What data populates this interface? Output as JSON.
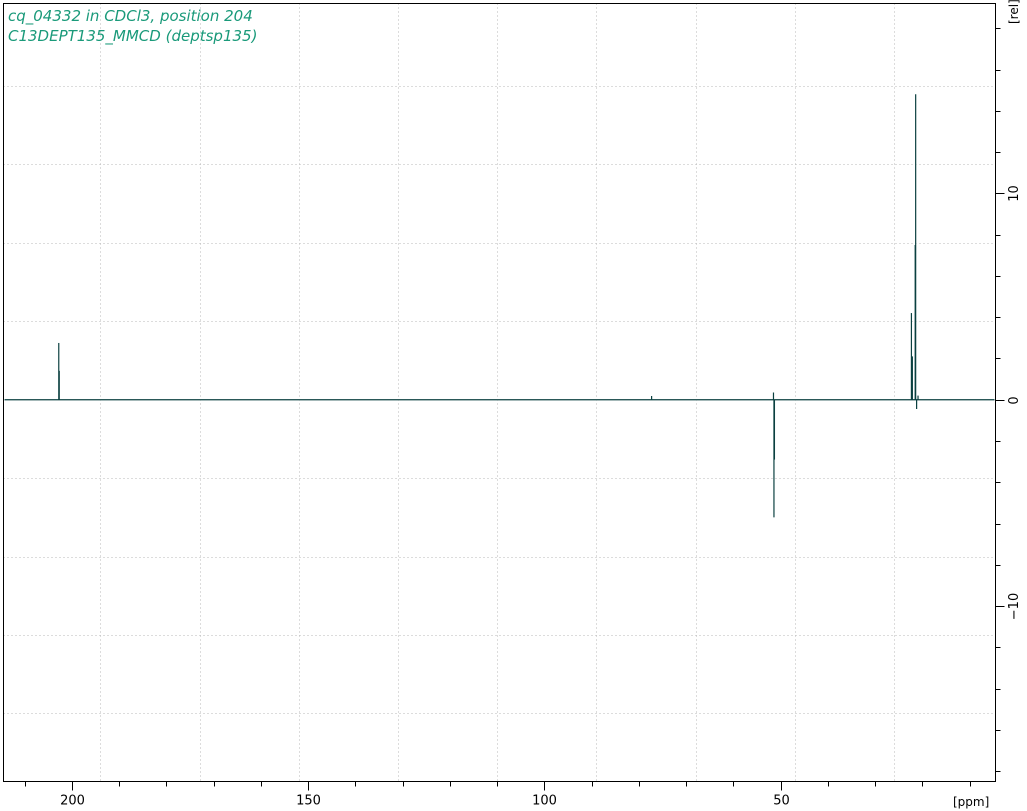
{
  "window": {
    "title_lines": [
      "cq_04332 in CDCl3, position 204",
      "C13DEPT135_MMCD (deptsp135)"
    ]
  },
  "colors": {
    "title": "#1a9a7a",
    "trace": "#0b4040",
    "grid": "#b8b8b8",
    "frame": "#000000"
  },
  "chart_data": {
    "type": "line",
    "title": "cq_04332 in CDCl3, position 204",
    "subtitle": "C13DEPT135_MMCD (deptsp135)",
    "xlabel": "[ppm]",
    "ylabel": "[rel]",
    "x_reversed": true,
    "xlim": [
      214.5,
      4.5
    ],
    "ylim": [
      -18.5,
      19.2
    ],
    "x_major_ticks": [
      200,
      150,
      100,
      50
    ],
    "x_major_labels": [
      "200",
      "150",
      "100",
      "50"
    ],
    "x_minor_ticks": [
      210,
      190,
      180,
      170,
      160,
      140,
      130,
      120,
      110,
      90,
      80,
      70,
      60,
      40,
      30,
      20,
      10
    ],
    "x_grid": [
      194,
      173,
      152,
      131,
      110,
      89,
      68,
      47,
      26
    ],
    "y_major_ticks": [
      10,
      0,
      -10
    ],
    "y_major_labels": [
      "10",
      "0",
      "−10"
    ],
    "y_minor_ticks": [
      18,
      16,
      14,
      12,
      8,
      6,
      4,
      2,
      -2,
      -4,
      -6,
      -8,
      -12,
      -14,
      -16,
      -18
    ],
    "y_grid": [
      15.2,
      11.4,
      7.6,
      3.8,
      -3.8,
      -7.6,
      -11.4,
      -15.2
    ],
    "grid": true,
    "series": [
      {
        "name": "",
        "peaks": [
          {
            "x": 202.8,
            "y": 2.75
          },
          {
            "x": 202.7,
            "y": 1.4
          },
          {
            "x": 51.4,
            "y": -5.7
          },
          {
            "x": 51.3,
            "y": -2.9
          },
          {
            "x": 51.5,
            "y": 0.35
          },
          {
            "x": 22.3,
            "y": 4.2
          },
          {
            "x": 22.1,
            "y": 2.1
          },
          {
            "x": 21.4,
            "y": 14.8
          },
          {
            "x": 21.5,
            "y": 7.5
          },
          {
            "x": 21.2,
            "y": -0.45
          },
          {
            "x": 20.9,
            "y": 0.2
          },
          {
            "x": 77.3,
            "y": 0.18
          }
        ]
      }
    ]
  }
}
